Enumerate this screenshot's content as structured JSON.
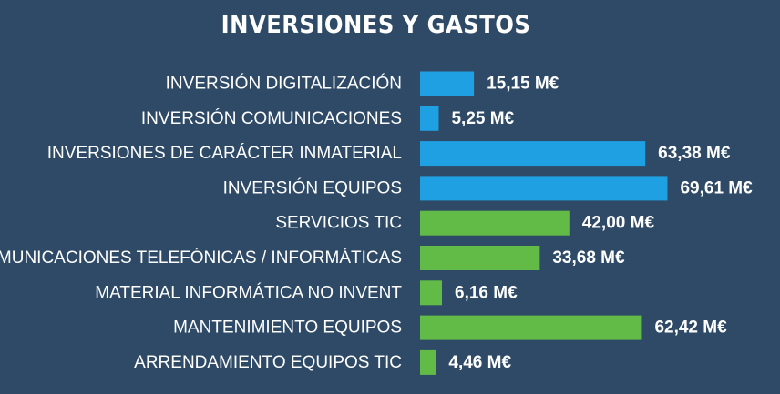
{
  "chart_data": {
    "type": "bar",
    "orientation": "horizontal",
    "title": "INVERSIONES Y GASTOS",
    "unit": "M€",
    "grid": false,
    "legend": "none",
    "categories": [
      "INVERSIÓN DIGITALIZACIÓN",
      "INVERSIÓN COMUNICACIONES",
      "INVERSIONES DE CARÁCTER INMATERIAL",
      "INVERSIÓN EQUIPOS",
      "SERVICIOS TIC",
      "COMUNICACIONES TELEFÓNICAS / INFORMÁTICAS",
      "MATERIAL INFORMÁTICA NO INVENT",
      "MANTENIMIENTO EQUIPOS",
      "ARRENDAMIENTO EQUIPOS TIC"
    ],
    "values": [
      15.15,
      5.25,
      63.38,
      69.61,
      42.0,
      33.68,
      6.16,
      62.42,
      4.46
    ],
    "value_labels": [
      "15,15 M€",
      "5,25 M€",
      "63,38 M€",
      "69,61 M€",
      "42,00 M€",
      "33,68 M€",
      "6,16 M€",
      "62,42 M€",
      "4,46 M€"
    ],
    "bar_colors": [
      "#1ea0e2",
      "#1ea0e2",
      "#1ea0e2",
      "#1ea0e2",
      "#62bb47",
      "#62bb47",
      "#62bb47",
      "#62bb47",
      "#62bb47"
    ],
    "background_color": "#2e4a66"
  }
}
